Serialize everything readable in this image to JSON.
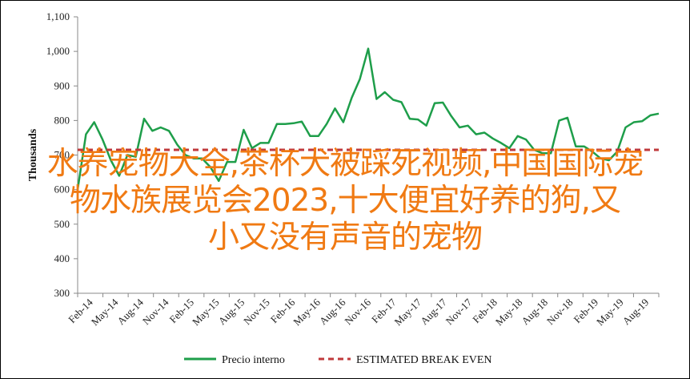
{
  "chart_data": {
    "type": "line",
    "ylabel": "Thousands",
    "ylim": [
      300,
      1100
    ],
    "yticks": [
      300,
      400,
      500,
      600,
      700,
      800,
      900,
      1000,
      1100
    ],
    "ytick_labels": [
      "300",
      "400",
      "500",
      "600",
      "700",
      "800",
      "900",
      "1,000",
      "1,100"
    ],
    "xtick_labels": [
      "Feb-14",
      "May-14",
      "Aug-14",
      "Nov-14",
      "Feb-15",
      "May-15",
      "Aug-15",
      "Nov-15",
      "Feb-16",
      "May-16",
      "Aug-16",
      "Nov-16",
      "Feb-17",
      "May-17",
      "Aug-17",
      "Nov-17",
      "Feb-18",
      "May-18",
      "Aug-18",
      "Nov-18",
      "Feb-19",
      "May-19",
      "Aug-19"
    ],
    "series": [
      {
        "name": "Precio interno",
        "color": "#1e9e4a",
        "style": "solid",
        "values": [
          600,
          760,
          795,
          745,
          685,
          640,
          700,
          695,
          805,
          770,
          780,
          770,
          730,
          700,
          690,
          690,
          665,
          625,
          680,
          680,
          773,
          720,
          735,
          735,
          790,
          790,
          792,
          797,
          755,
          755,
          790,
          835,
          795,
          865,
          920,
          1008,
          862,
          882,
          860,
          853,
          805,
          803,
          785,
          850,
          852,
          813,
          780,
          785,
          760,
          765,
          748,
          735,
          720,
          755,
          745,
          715,
          705,
          705,
          800,
          808,
          725,
          725,
          710,
          690,
          685,
          710,
          780,
          795,
          798,
          815,
          820
        ]
      },
      {
        "name": "ESTIMATED BREAK EVEN",
        "color": "#c0393b",
        "style": "dashed",
        "values": [
          715,
          715
        ]
      }
    ],
    "legend_position": "bottom",
    "grid": false
  },
  "overlay": {
    "line1": "水养宠物大全,茶杯犬被踩死视频,中国国际宠",
    "line2": "物水族展览会2023,十大便宜好养的狗,又",
    "line3": "小又没有声音的宠物"
  }
}
